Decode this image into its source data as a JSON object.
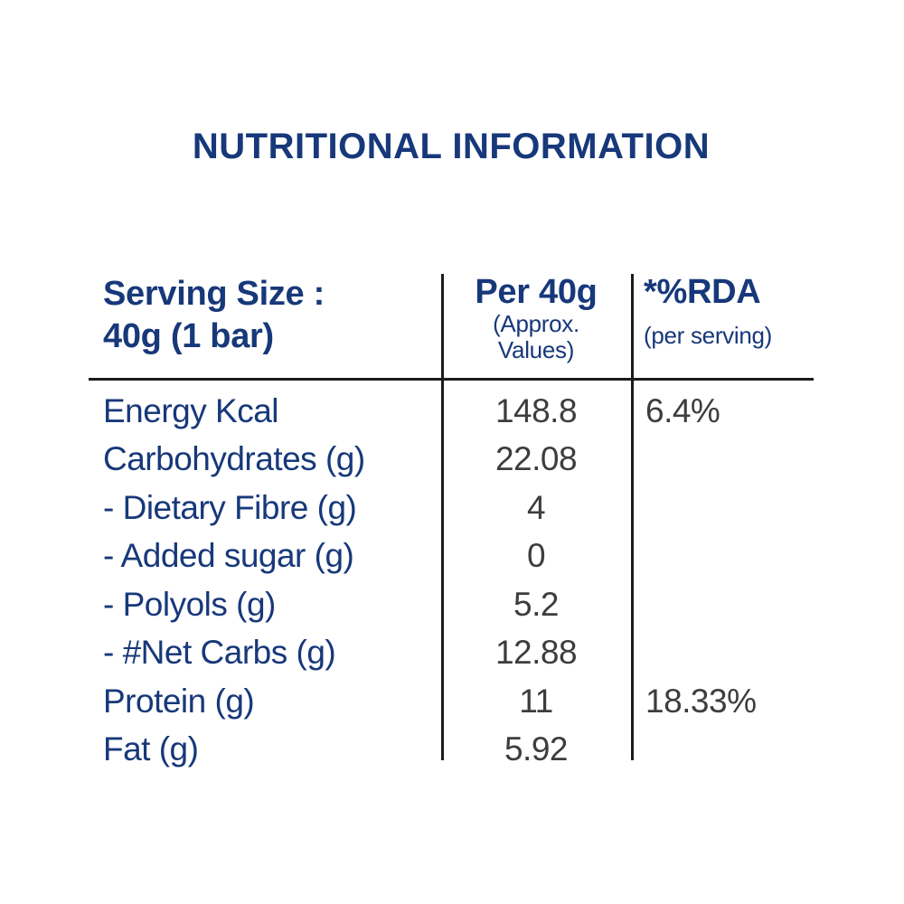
{
  "title": "NUTRITIONAL INFORMATION",
  "colors": {
    "navy": "#17387A",
    "value_gray": "#3D3D3D",
    "line_black": "#1B1B1B",
    "background": "#FFFFFF"
  },
  "table": {
    "header": {
      "serving_size_line1": "Serving Size :",
      "serving_size_line2": "40g (1 bar)",
      "per_label": "Per 40g",
      "per_note_line1": "(Approx.",
      "per_note_line2": "Values)",
      "rda_label": "*%RDA",
      "rda_note": "(per serving)"
    },
    "rows": [
      {
        "label": "Energy Kcal",
        "value": "148.8",
        "rda": "6.4%"
      },
      {
        "label": "Carbohydrates (g)",
        "value": "22.08",
        "rda": ""
      },
      {
        "label": "- Dietary Fibre (g)",
        "value": "4",
        "rda": ""
      },
      {
        "label": "- Added sugar (g)",
        "value": "0",
        "rda": ""
      },
      {
        "label": "- Polyols (g)",
        "value": "5.2",
        "rda": ""
      },
      {
        "label": "- #Net Carbs (g)",
        "value": "12.88",
        "rda": ""
      },
      {
        "label": "Protein (g)",
        "value": "11",
        "rda": "18.33%"
      },
      {
        "label": "Fat (g)",
        "value": "5.92",
        "rda": ""
      }
    ]
  }
}
